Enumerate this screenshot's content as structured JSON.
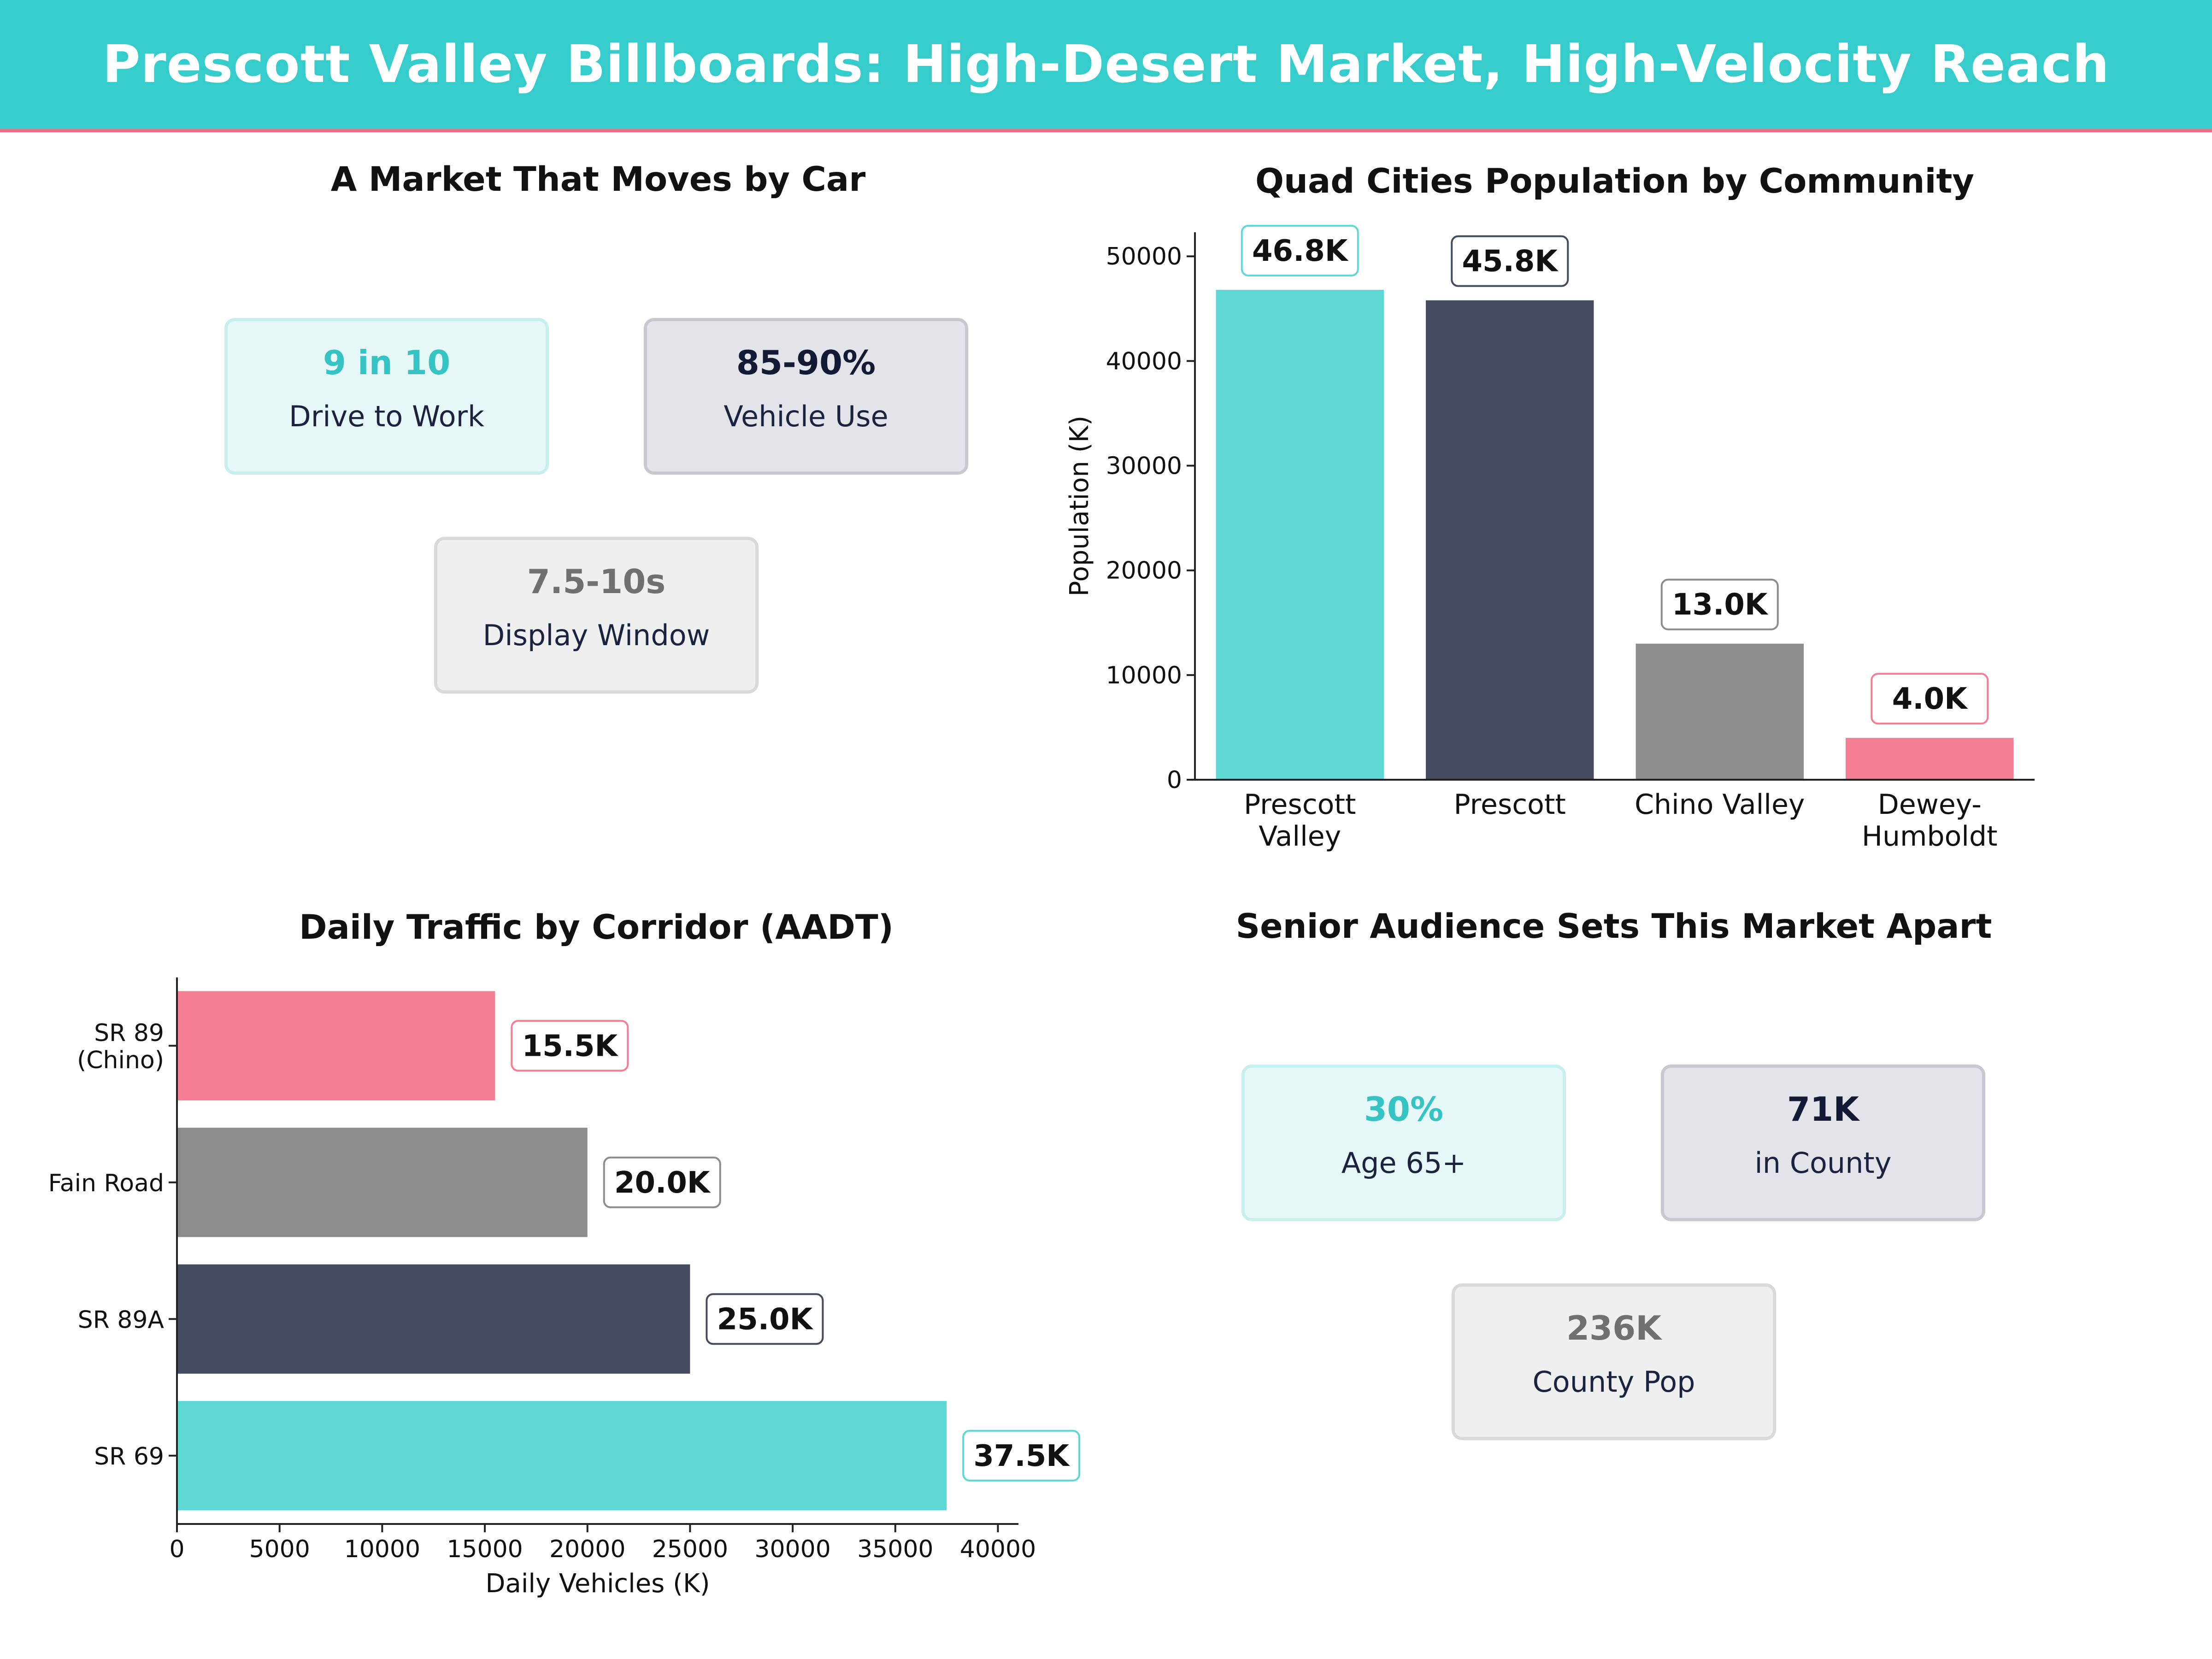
{
  "header": {
    "title": "Prescott Valley Billboards: High-Desert Market, High-Velocity Reach"
  },
  "colors": {
    "teal": "#5dd8d5",
    "navy": "#454a5f",
    "grey": "#8c8c8c",
    "pink": "#f47f93",
    "header_bg": "#35cccb",
    "header_rule": "#ef6f86"
  },
  "panel_market": {
    "title": "A Market That Moves by Car",
    "kpis": [
      {
        "value": "9 in 10",
        "label": "Drive to Work",
        "style": "teal"
      },
      {
        "value": "85-90%",
        "label": "Vehicle Use",
        "style": "navy"
      },
      {
        "value": "7.5-10s",
        "label": "Display Window",
        "style": "grey"
      }
    ]
  },
  "panel_senior": {
    "title": "Senior Audience Sets This Market Apart",
    "kpis": [
      {
        "value": "30%",
        "label": "Age 65+",
        "style": "teal"
      },
      {
        "value": "71K",
        "label": "in County",
        "style": "navy"
      },
      {
        "value": "236K",
        "label": "County Pop",
        "style": "grey"
      }
    ]
  },
  "chart_data": [
    {
      "type": "bar",
      "title": "Quad Cities Population by Community",
      "categories": [
        "Prescott Valley",
        "Prescott",
        "Chino Valley",
        "Dewey-Humboldt"
      ],
      "tick_labels": [
        [
          "Prescott",
          "Valley"
        ],
        [
          "Prescott"
        ],
        [
          "Chino Valley"
        ],
        [
          "Dewey-",
          "Humboldt"
        ]
      ],
      "values": [
        46800,
        45800,
        13000,
        4000
      ],
      "data_labels": [
        "46.8K",
        "45.8K",
        "13.0K",
        "4.0K"
      ],
      "bar_colors": [
        "#5dd8d5",
        "#454a5f",
        "#8c8c8c",
        "#f47f93"
      ],
      "label_border_colors": [
        "#5dd8d5",
        "#454a5f",
        "#8c8c8c",
        "#f47f93"
      ],
      "xlabel": "",
      "ylabel": "Population (K)",
      "ylim": [
        0,
        52300
      ],
      "yticks": [
        0,
        10000,
        20000,
        30000,
        40000,
        50000
      ],
      "grid": false
    },
    {
      "type": "bar",
      "orientation": "horizontal",
      "title": "Daily Traffic by Corridor (AADT)",
      "categories": [
        "SR 89 (Chino)",
        "Fain Road",
        "SR 89A",
        "SR 69"
      ],
      "tick_labels": [
        [
          "SR 89",
          "(Chino)"
        ],
        [
          "Fain Road"
        ],
        [
          "SR 89A"
        ],
        [
          "SR 69"
        ]
      ],
      "values": [
        15500,
        20000,
        25000,
        37500
      ],
      "data_labels": [
        "15.5K",
        "20.0K",
        "25.0K",
        "37.5K"
      ],
      "bar_colors": [
        "#f47f93",
        "#8c8c8c",
        "#454a5f",
        "#5dd8d5"
      ],
      "label_border_colors": [
        "#f47f93",
        "#8c8c8c",
        "#454a5f",
        "#5dd8d5"
      ],
      "xlabel": "Daily Vehicles (K)",
      "ylabel": "",
      "xlim": [
        0,
        41000
      ],
      "xticks": [
        0,
        5000,
        10000,
        15000,
        20000,
        25000,
        30000,
        35000,
        40000
      ],
      "grid": false
    }
  ]
}
